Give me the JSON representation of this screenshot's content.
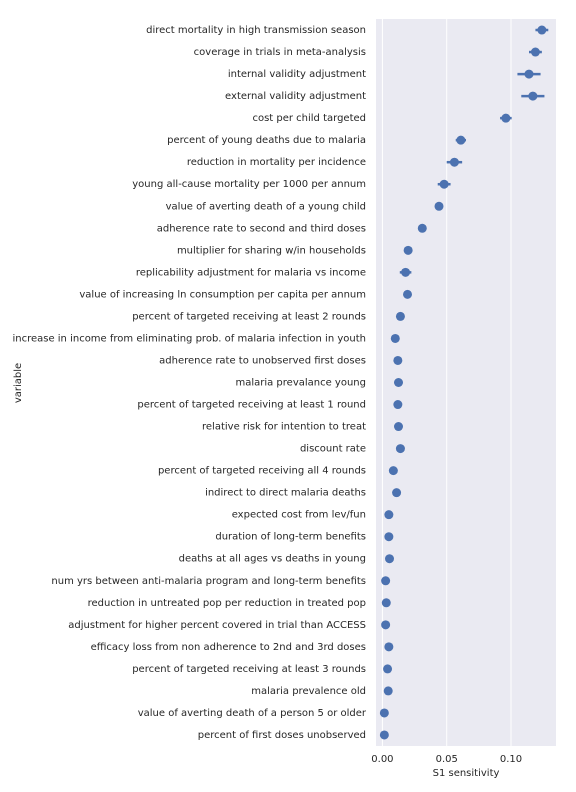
{
  "chart_data": {
    "type": "point",
    "xlabel": "S1 sensitivity",
    "ylabel": "variable",
    "categories": [
      "direct mortality in high transmission season",
      "coverage in trials in meta-analysis",
      "internal validity adjustment",
      "external validity adjustment",
      "cost per child targeted",
      "percent of young deaths due to malaria",
      "reduction in mortality per incidence",
      "young all-cause mortality per 1000 per annum",
      "value of averting death of a young child",
      "adherence rate to second and third doses",
      "multiplier for sharing w/in households",
      "replicability adjustment for malaria vs income",
      "value of increasing ln consumption per capita per annum",
      "percent of targeted receiving at least 2 rounds",
      "increase in income from eliminating prob. of malaria infection in youth",
      "adherence rate to unobserved first doses",
      "malaria prevalance young",
      "percent of targeted receiving at least 1 round",
      "relative risk for intention to treat",
      "discount rate",
      "percent of targeted receiving all 4 rounds",
      "indirect to direct malaria deaths",
      "expected cost from lev/fun",
      "duration of long-term benefits",
      "deaths at all ages vs deaths in young",
      "num yrs between anti-malaria program and long-term benefits",
      "reduction in untreated pop per reduction in treated pop",
      "adjustment for higher percent covered in trial than ACCESS",
      "efficacy loss from non adherence to 2nd and 3rd doses",
      "percent of targeted receiving at least 3 rounds",
      "malaria prevalence old",
      "value of averting death of a person 5 or older",
      "percent of first doses unobserved"
    ],
    "values": [
      0.124,
      0.119,
      0.114,
      0.117,
      0.096,
      0.061,
      0.056,
      0.048,
      0.044,
      0.031,
      0.02,
      0.018,
      0.0195,
      0.014,
      0.01,
      0.012,
      0.0125,
      0.012,
      0.0125,
      0.014,
      0.0085,
      0.011,
      0.005,
      0.005,
      0.0055,
      0.0025,
      0.003,
      0.0025,
      0.005,
      0.004,
      0.0045,
      0.0015,
      0.0015
    ],
    "errors": [
      0.005,
      0.005,
      0.009,
      0.009,
      0.0045,
      0.004,
      0.006,
      0.005,
      0.002,
      0.002,
      0.002,
      0.0045,
      0.002,
      0.001,
      0.001,
      0.001,
      0.001,
      0.001,
      0.001,
      0.002,
      0.001,
      0.001,
      0.001,
      0.001,
      0.001,
      0.001,
      0.001,
      0.001,
      0.001,
      0.001,
      0.001,
      0.001,
      0.001
    ],
    "color": "#4c72b0",
    "xlim": [
      -0.005,
      0.135
    ],
    "xticks": [
      {
        "value": 0,
        "label": "0.00"
      },
      {
        "value": 0.05,
        "label": "0.05"
      },
      {
        "value": 0.1,
        "label": "0.10"
      }
    ],
    "grid": true
  }
}
